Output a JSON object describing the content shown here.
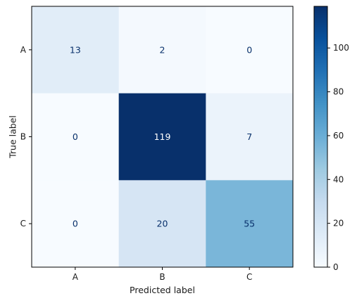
{
  "chart_data": {
    "type": "heatmap",
    "title": "",
    "xlabel": "Predicted label",
    "ylabel": "True label",
    "x_categories": [
      "A",
      "B",
      "C"
    ],
    "y_categories": [
      "A",
      "B",
      "C"
    ],
    "matrix": [
      [
        13,
        2,
        0
      ],
      [
        0,
        119,
        7
      ],
      [
        0,
        20,
        55
      ]
    ],
    "colormap": "Blues",
    "color_low": "#f7fbff",
    "color_high": "#08306b",
    "vmin": 0,
    "vmax": 119,
    "colorbar_ticks": [
      0,
      20,
      40,
      60,
      80,
      100
    ],
    "grid": false
  }
}
